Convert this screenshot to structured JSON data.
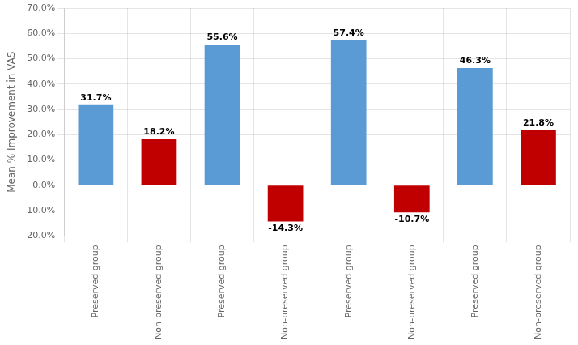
{
  "chart_data": {
    "type": "bar",
    "ylabel": "Mean % Improvement in VAS",
    "categories": [
      "Preserved group",
      "Non-preserved group",
      "Preserved group",
      "Non-preserved group",
      "Preserved group",
      "Non-preserved group",
      "Preserved group",
      "Non-preserved group"
    ],
    "values": [
      31.7,
      18.2,
      55.6,
      -14.3,
      57.4,
      -10.7,
      46.3,
      21.8
    ],
    "value_labels": [
      "31.7%",
      "18.2%",
      "55.6%",
      "-14.3%",
      "57.4%",
      "-10.7%",
      "46.3%",
      "21.8%"
    ],
    "colors": [
      "#5b9bd5",
      "#c00000",
      "#5b9bd5",
      "#c00000",
      "#5b9bd5",
      "#c00000",
      "#5b9bd5",
      "#c00000"
    ],
    "ylim": [
      -20.0,
      70.0
    ],
    "yticks": [
      {
        "value": -20.0,
        "label": "-20.0%"
      },
      {
        "value": -10.0,
        "label": "-10.0%"
      },
      {
        "value": 0.0,
        "label": "0.0%"
      },
      {
        "value": 10.0,
        "label": "10.0%"
      },
      {
        "value": 20.0,
        "label": "20.0%"
      },
      {
        "value": 30.0,
        "label": "30.0%"
      },
      {
        "value": 40.0,
        "label": "40.0%"
      },
      {
        "value": 50.0,
        "label": "50.0%"
      },
      {
        "value": 60.0,
        "label": "60.0%"
      },
      {
        "value": 70.0,
        "label": "70.0%"
      }
    ],
    "grid": true,
    "data_labels": true
  }
}
